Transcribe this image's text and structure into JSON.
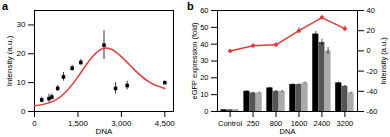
{
  "chart_data": [
    {
      "type": "scatter",
      "title": "a",
      "xlabel": "DNA",
      "ylabel": "Intensity (a.u.)",
      "xlim": [
        0,
        4800
      ],
      "xticks": [
        0,
        1500,
        3000,
        4500
      ],
      "ylim": [
        0,
        35
      ],
      "yticks": [
        0,
        10,
        20,
        30
      ],
      "series": [
        {
          "type": "scatter",
          "color": "#000000",
          "marker": "square",
          "x": [
            250,
            500,
            600,
            800,
            1000,
            1300,
            1600,
            2400,
            2800,
            3200,
            4500
          ],
          "values": [
            4,
            4.5,
            5,
            8,
            12,
            15,
            17,
            23,
            8,
            9,
            10
          ],
          "errors": [
            1,
            1.5,
            1,
            1,
            1.5,
            1,
            1,
            5,
            2,
            1.5,
            0.5
          ]
        },
        {
          "type": "line",
          "color": "#e03a3a",
          "x": [
            0,
            500,
            1000,
            1500,
            2000,
            2500,
            3000,
            3500,
            4000,
            4500
          ],
          "values": [
            2,
            3,
            6,
            12,
            19,
            22,
            19,
            14,
            10,
            8
          ]
        }
      ]
    },
    {
      "type": "bar",
      "title": "b",
      "xlabel": "DNA",
      "ylabel": "eGFP expression (fold)",
      "y2label": "Intensity (a.u.)",
      "categories": [
        "Control",
        "250",
        "800",
        "1600",
        "2400",
        "3200"
      ],
      "ylim": [
        0,
        60
      ],
      "yticks": [
        0,
        10,
        20,
        30,
        40,
        50,
        60
      ],
      "y2lim": [
        -60,
        40
      ],
      "y2ticks": [
        -60,
        -40,
        -20,
        0,
        20,
        40
      ],
      "series": [
        {
          "type": "bar",
          "color": "#000000",
          "values": [
            1,
            12,
            14,
            16,
            46,
            17
          ],
          "errors": [
            0.2,
            0.5,
            0.5,
            0.5,
            1.5,
            0.5
          ]
        },
        {
          "type": "bar",
          "color": "#555555",
          "values": [
            1,
            11,
            12,
            16,
            41,
            15
          ],
          "errors": [
            0.2,
            0.5,
            0.5,
            0.5,
            2,
            0.5
          ]
        },
        {
          "type": "bar",
          "color": "#aaaaaa",
          "values": [
            1,
            11,
            12,
            17,
            36,
            11
          ],
          "errors": [
            0.2,
            0.5,
            0.5,
            0.5,
            2,
            0.5
          ]
        },
        {
          "type": "line",
          "axis": "y2",
          "color": "#e03a3a",
          "marker": "circle",
          "values": [
            0,
            5,
            6,
            20,
            33,
            22
          ],
          "errors": [
            1,
            2,
            2,
            3,
            2,
            3
          ]
        }
      ]
    }
  ]
}
